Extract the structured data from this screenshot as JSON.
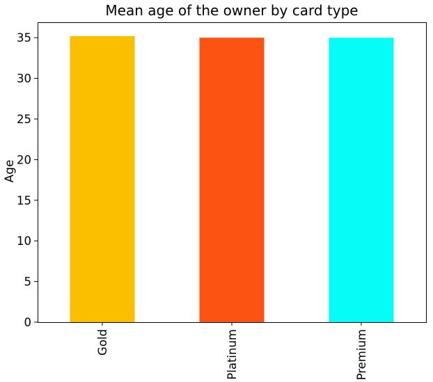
{
  "chart_data": {
    "type": "bar",
    "title": "Mean age of the owner by card type",
    "xlabel": "",
    "ylabel": "Age",
    "categories": [
      "Gold",
      "Platinum",
      "Premium"
    ],
    "values": [
      35.2,
      35.0,
      35.0
    ],
    "colors": [
      "#fbbf00",
      "#fd5312",
      "#06fdf7"
    ],
    "ylim": [
      0,
      36.9
    ],
    "yticks": [
      0,
      5,
      10,
      15,
      20,
      25,
      30,
      35
    ],
    "grid": false,
    "legend": "none"
  }
}
